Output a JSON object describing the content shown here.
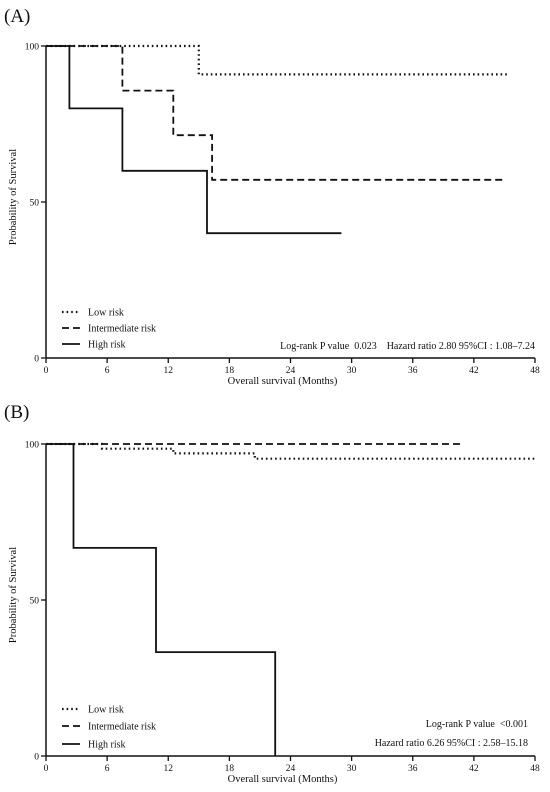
{
  "chart_data": [
    {
      "type": "line",
      "panel_label": "(A)",
      "xlabel": "Overall survival (Months)",
      "ylabel": "Probability of Survival",
      "xlim": [
        0,
        48
      ],
      "ylim": [
        0,
        100
      ],
      "x_ticks": [
        0,
        6,
        12,
        18,
        24,
        30,
        36,
        42,
        48
      ],
      "y_ticks": [
        0,
        50,
        100
      ],
      "grid": false,
      "legend_position": "bottom-left",
      "series": [
        {
          "name": "Low risk",
          "style": "dotted",
          "x": [
            0,
            15,
            15,
            45.5
          ],
          "y": [
            100,
            100,
            90.9,
            90.9
          ]
        },
        {
          "name": "Intermediate risk",
          "style": "dashed",
          "x": [
            0,
            7.5,
            7.5,
            12.5,
            12.5,
            16.3,
            16.3,
            45
          ],
          "y": [
            100,
            100,
            85.7,
            85.7,
            71.4,
            71.4,
            57.1,
            57.1
          ]
        },
        {
          "name": "High risk",
          "style": "solid",
          "x": [
            0,
            2.3,
            2.3,
            7.5,
            7.5,
            15.8,
            15.8,
            29
          ],
          "y": [
            100,
            100,
            80,
            80,
            60,
            60,
            40,
            40
          ]
        }
      ],
      "annotations": [
        "Log-rank P value  0.023    Hazard ratio 2.80 95%CI : 1.08–7.24"
      ]
    },
    {
      "type": "line",
      "panel_label": "(B)",
      "xlabel": "Overall survival (Months)",
      "ylabel": "Probability of Survival",
      "xlim": [
        0,
        48
      ],
      "ylim": [
        0,
        100
      ],
      "x_ticks": [
        0,
        6,
        12,
        18,
        24,
        30,
        36,
        42,
        48
      ],
      "y_ticks": [
        0,
        50,
        100
      ],
      "grid": false,
      "legend_position": "bottom-left",
      "series": [
        {
          "name": "Low risk",
          "style": "dotted",
          "x": [
            0,
            5.5,
            5.5,
            12.5,
            12.5,
            20.5,
            20.5,
            48
          ],
          "y": [
            100,
            100,
            98.5,
            98.5,
            97,
            97,
            95.3,
            95.3
          ]
        },
        {
          "name": "Intermediate risk",
          "style": "dashed",
          "x": [
            0,
            41
          ],
          "y": [
            100,
            100
          ]
        },
        {
          "name": "High risk",
          "style": "solid",
          "x": [
            0,
            2.7,
            2.7,
            10.8,
            10.8,
            22.5,
            22.5
          ],
          "y": [
            100,
            100,
            66.7,
            66.7,
            33.3,
            33.3,
            0
          ]
        }
      ],
      "annotations": [
        "Log-rank P value  <0.001",
        "Hazard ratio 6.26 95%CI : 2.58–15.18"
      ]
    }
  ]
}
